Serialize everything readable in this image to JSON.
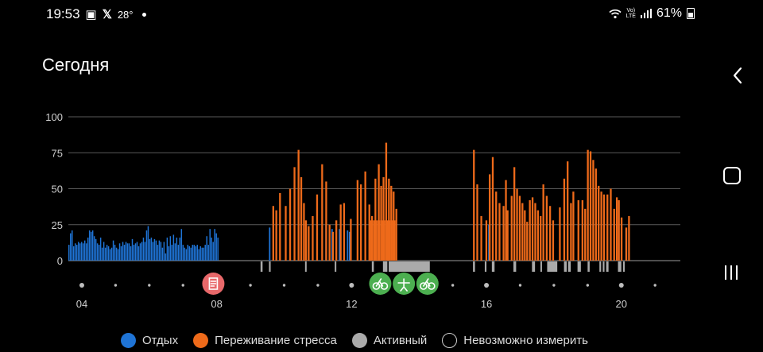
{
  "status_bar": {
    "time": "19:53",
    "temperature": "28°",
    "network": "LTE",
    "volte": "Vo)",
    "battery": "61%"
  },
  "page": {
    "title": "Сегодня"
  },
  "colors": {
    "rest": "#1f74d6",
    "stress": "#ee6a1a",
    "active": "#aaaaaa",
    "unmeasurable": "#000000",
    "event_red": "#e8686a",
    "event_green": "#4caf50"
  },
  "legend": [
    {
      "label": "Отдых",
      "color": "#1f74d6"
    },
    {
      "label": "Переживание стресса",
      "color": "#ee6a1a"
    },
    {
      "label": "Активный",
      "color": "#aaaaaa"
    },
    {
      "label": "Невозможно измерить",
      "color": "#000000"
    }
  ],
  "event_icons": [
    {
      "name": "medical-record-icon",
      "time": 7.9,
      "color": "#e8686a"
    },
    {
      "name": "cycling-icon",
      "time": 12.85,
      "color": "#4caf50"
    },
    {
      "name": "workout-icon",
      "time": 13.55,
      "color": "#4caf50"
    },
    {
      "name": "cycling-icon",
      "time": 14.25,
      "color": "#4caf50"
    }
  ],
  "chart_data": {
    "type": "bar",
    "x_unit": "hour",
    "xlim": [
      3.6,
      21.75
    ],
    "ylim": [
      0,
      100
    ],
    "yticks": [
      0,
      25,
      50,
      75,
      100
    ],
    "ytick_labels": [
      "0",
      "25",
      "50",
      "75",
      "100"
    ],
    "xticks": [
      4,
      8,
      12,
      16,
      20
    ],
    "xtick_labels": [
      "04",
      "08",
      "12",
      "16",
      "20"
    ],
    "grid": true,
    "rest_values": {
      "start": 3.6,
      "step": 0.047,
      "values": [
        11,
        19,
        21,
        10,
        12,
        11,
        13,
        12,
        13,
        12,
        14,
        12,
        16,
        21,
        20,
        21,
        17,
        15,
        12,
        11,
        16,
        9,
        13,
        9,
        11,
        10,
        8,
        9,
        14,
        11,
        9,
        8,
        12,
        10,
        13,
        11,
        13,
        12,
        12,
        10,
        15,
        11,
        12,
        13,
        10,
        12,
        13,
        16,
        13,
        21,
        24,
        15,
        16,
        13,
        15,
        14,
        11,
        14,
        13,
        9,
        13,
        5,
        16,
        10,
        17,
        11,
        18,
        12,
        16,
        11,
        16,
        22,
        11,
        9,
        8,
        11,
        10,
        9,
        11,
        11,
        10,
        11,
        8,
        10,
        9,
        9,
        11,
        17,
        11,
        22,
        16,
        13,
        22,
        19,
        16
      ]
    },
    "stress_bars": [
      [
        9.65,
        38
      ],
      [
        9.74,
        35
      ],
      [
        9.85,
        47
      ],
      [
        10.02,
        38
      ],
      [
        10.15,
        50
      ],
      [
        10.28,
        65
      ],
      [
        10.4,
        77
      ],
      [
        10.48,
        58
      ],
      [
        10.56,
        40
      ],
      [
        10.62,
        28
      ],
      [
        10.7,
        24
      ],
      [
        10.82,
        31
      ],
      [
        10.95,
        46
      ],
      [
        11.1,
        67
      ],
      [
        11.22,
        55
      ],
      [
        11.32,
        25
      ],
      [
        11.42,
        20
      ],
      [
        11.52,
        28
      ],
      [
        11.65,
        39
      ],
      [
        11.75,
        40
      ],
      [
        11.95,
        29
      ],
      [
        12.15,
        56
      ],
      [
        12.25,
        53
      ],
      [
        12.38,
        62
      ],
      [
        12.5,
        39
      ],
      [
        12.58,
        31
      ],
      [
        12.68,
        57
      ],
      [
        12.78,
        67
      ],
      [
        12.85,
        52
      ],
      [
        12.92,
        58
      ],
      [
        13.0,
        82
      ],
      [
        13.08,
        57
      ],
      [
        13.15,
        52
      ],
      [
        13.22,
        48
      ],
      [
        13.3,
        36
      ],
      [
        15.6,
        77
      ],
      [
        15.7,
        53
      ],
      [
        15.82,
        31
      ],
      [
        15.97,
        28
      ],
      [
        16.07,
        60
      ],
      [
        16.16,
        72
      ],
      [
        16.26,
        48
      ],
      [
        16.36,
        40
      ],
      [
        16.48,
        38
      ],
      [
        16.55,
        56
      ],
      [
        16.6,
        35
      ],
      [
        16.72,
        45
      ],
      [
        16.8,
        65
      ],
      [
        16.88,
        50
      ],
      [
        16.96,
        45
      ],
      [
        17.04,
        40
      ],
      [
        17.11,
        35
      ],
      [
        17.18,
        27
      ],
      [
        17.26,
        42
      ],
      [
        17.34,
        44
      ],
      [
        17.42,
        40
      ],
      [
        17.5,
        35
      ],
      [
        17.58,
        31
      ],
      [
        17.66,
        53
      ],
      [
        17.76,
        45
      ],
      [
        17.86,
        38
      ],
      [
        17.95,
        28
      ],
      [
        18.15,
        37
      ],
      [
        18.28,
        57
      ],
      [
        18.38,
        69
      ],
      [
        18.48,
        40
      ],
      [
        18.55,
        48
      ],
      [
        18.7,
        42
      ],
      [
        18.82,
        42
      ],
      [
        18.9,
        36
      ],
      [
        18.98,
        77
      ],
      [
        19.06,
        76
      ],
      [
        19.14,
        70
      ],
      [
        19.22,
        64
      ],
      [
        19.3,
        52
      ],
      [
        19.38,
        48
      ],
      [
        19.46,
        46
      ],
      [
        19.56,
        46
      ],
      [
        19.66,
        50
      ],
      [
        19.76,
        36
      ],
      [
        19.84,
        44
      ],
      [
        19.9,
        42
      ],
      [
        19.98,
        30
      ],
      [
        20.12,
        23
      ],
      [
        20.2,
        31
      ]
    ],
    "rest_bars_extra": [
      [
        9.55,
        23
      ],
      [
        11.22,
        25
      ],
      [
        11.32,
        24
      ],
      [
        11.4,
        22
      ],
      [
        11.52,
        22
      ],
      [
        11.62,
        22
      ],
      [
        11.86,
        21
      ],
      [
        11.92,
        20
      ],
      [
        16.05,
        25
      ],
      [
        20.12,
        22
      ]
    ],
    "active_segments": [
      [
        9.3,
        9.36
      ],
      [
        9.55,
        9.6
      ],
      [
        10.62,
        10.66
      ],
      [
        11.5,
        11.54
      ],
      [
        12.6,
        12.66
      ],
      [
        12.93,
        13.06
      ],
      [
        13.1,
        14.32
      ],
      [
        15.6,
        15.66
      ],
      [
        15.95,
        16.0
      ],
      [
        16.16,
        16.24
      ],
      [
        16.8,
        16.88
      ],
      [
        17.35,
        17.44
      ],
      [
        17.6,
        17.64
      ],
      [
        17.8,
        18.1
      ],
      [
        18.3,
        18.38
      ],
      [
        18.42,
        18.5
      ],
      [
        18.7,
        18.8
      ],
      [
        19.0,
        19.06
      ],
      [
        19.35,
        19.4
      ],
      [
        19.45,
        19.5
      ],
      [
        19.55,
        19.62
      ],
      [
        19.9,
        20.0
      ],
      [
        20.05,
        20.1
      ]
    ],
    "hour_dots": [
      4,
      5,
      6,
      7,
      8,
      9,
      10,
      11,
      12,
      13,
      14,
      15,
      16,
      17,
      18,
      19,
      20,
      21
    ],
    "big_dot_hours": [
      4,
      12,
      16,
      20
    ]
  }
}
